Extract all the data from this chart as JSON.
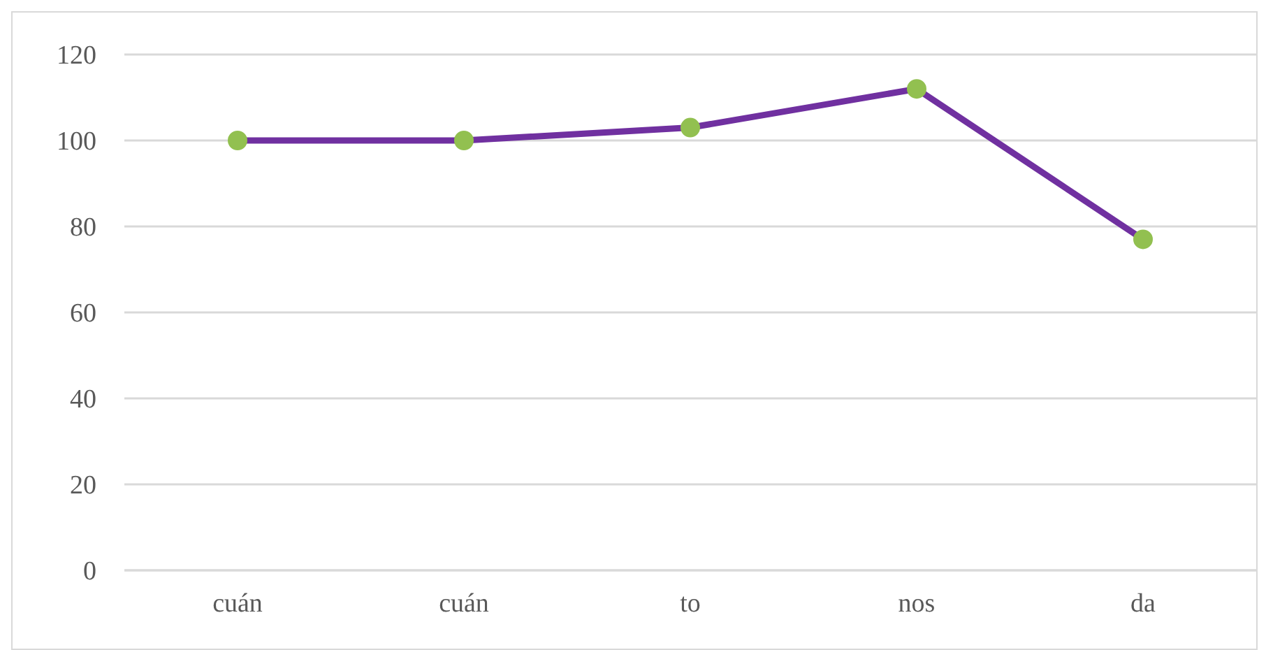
{
  "chart_data": {
    "type": "line",
    "categories": [
      "cuán",
      "cuán",
      "to",
      "nos",
      "da"
    ],
    "series": [
      {
        "color": "#7030a0",
        "colors": [
          "#92c050",
          "#92c050",
          "#92c050",
          "#92c050",
          "#92c050"
        ],
        "values": [
          100,
          100,
          103,
          112,
          77
        ]
      }
    ],
    "ylim": [
      0,
      120
    ],
    "yticks": [
      0,
      20,
      40,
      60,
      80,
      100,
      120
    ],
    "grid": "y",
    "marker": "circle",
    "line_style": "solid"
  }
}
